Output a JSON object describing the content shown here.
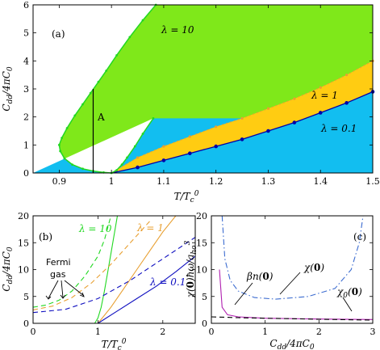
{
  "colors": {
    "green": "#7FE81A",
    "orange": "#FFCC12",
    "cyan": "#12BEF0",
    "blue_line": "#0000A8",
    "green_line": "#21D821",
    "orange_line": "#E8A032",
    "magenta": "#B020B0",
    "sky": "#3C6CD0"
  },
  "chart_data": [
    {
      "type": "area",
      "panel_label": "(a)",
      "xlabel": "T/T_c^0",
      "ylabel": "C_dd/4πC_0",
      "xlim": [
        0.85,
        1.5
      ],
      "ylim": [
        0,
        6
      ],
      "x_ticks": [
        "0.9",
        "1",
        "1.1",
        "1.2",
        "1.3",
        "1.4",
        "1.5"
      ],
      "y_ticks": [
        "0",
        "1",
        "2",
        "3",
        "4",
        "5",
        "6"
      ],
      "region_labels": [
        "λ = 10",
        "λ = 1",
        "λ = 0.1"
      ],
      "annotation": "A",
      "series": [
        {
          "name": "λ = 10",
          "x": [
            1.085,
            1.06,
            1.035,
            1.01,
            0.99,
            0.975,
            0.96,
            0.945,
            0.93,
            0.915,
            0.905,
            0.9,
            0.902,
            0.91,
            0.925,
            0.945,
            0.965,
            0.985,
            1.0,
            1.01,
            1.02,
            1.03,
            1.045,
            1.06,
            1.08
          ],
          "y": [
            6.0,
            5.45,
            4.85,
            4.2,
            3.65,
            3.25,
            2.85,
            2.45,
            2.05,
            1.6,
            1.25,
            1.0,
            0.78,
            0.52,
            0.3,
            0.15,
            0.07,
            0.02,
            0.0,
            0.1,
            0.3,
            0.55,
            0.95,
            1.4,
            1.95
          ]
        },
        {
          "name": "λ = 1",
          "x": [
            1.0,
            1.05,
            1.1,
            1.15,
            1.2,
            1.25,
            1.3,
            1.35,
            1.4,
            1.45,
            1.5
          ],
          "y": [
            0.0,
            0.55,
            0.95,
            1.3,
            1.65,
            1.95,
            2.3,
            2.65,
            3.05,
            3.5,
            4.0
          ]
        },
        {
          "name": "λ = 0.1",
          "x": [
            1.0,
            1.05,
            1.1,
            1.15,
            1.2,
            1.25,
            1.3,
            1.35,
            1.4,
            1.45,
            1.5
          ],
          "y": [
            0.0,
            0.2,
            0.45,
            0.7,
            0.95,
            1.2,
            1.5,
            1.8,
            2.15,
            2.5,
            2.9
          ]
        }
      ],
      "vertical_line": {
        "x": 0.965,
        "y": [
          0,
          3.0
        ]
      }
    },
    {
      "type": "line",
      "panel_label": "(b)",
      "xlabel": "T/T_c^0",
      "ylabel": "C_dd/4πC_0",
      "xlim": [
        0,
        2.5
      ],
      "ylim": [
        0,
        20
      ],
      "x_ticks": [
        "0",
        "1",
        "2"
      ],
      "y_ticks": [
        "0",
        "5",
        "10",
        "15",
        "20"
      ],
      "legend_labels": [
        "λ = 10",
        "λ = 1",
        "λ = 0.1"
      ],
      "annotation": "Fermi gas",
      "series": [
        {
          "name": "λ = 10",
          "style": "solid",
          "x": [
            0.95,
            1.0,
            1.05,
            1.1,
            1.15,
            1.2,
            1.25,
            1.3
          ],
          "y": [
            0,
            1.0,
            3.0,
            6.0,
            9.5,
            13.0,
            16.5,
            20.0
          ]
        },
        {
          "name": "λ = 10",
          "style": "dashed",
          "x": [
            0,
            0.2,
            0.4,
            0.6,
            0.8,
            1.0,
            1.1,
            1.2
          ],
          "y": [
            3.0,
            3.4,
            4.3,
            6.0,
            8.8,
            12.5,
            15.5,
            20.0
          ]
        },
        {
          "name": "λ = 1",
          "style": "solid",
          "x": [
            1.0,
            1.2,
            1.4,
            1.6,
            1.8,
            2.0,
            2.2
          ],
          "y": [
            0.0,
            3.0,
            6.5,
            10.0,
            13.5,
            17.0,
            20.0
          ]
        },
        {
          "name": "λ = 1",
          "style": "dashed",
          "x": [
            0,
            0.3,
            0.6,
            0.9,
            1.2,
            1.5,
            1.8
          ],
          "y": [
            2.5,
            3.2,
            4.8,
            7.5,
            11.0,
            15.0,
            19.0
          ]
        },
        {
          "name": "λ = 0.1",
          "style": "solid",
          "x": [
            1.0,
            1.3,
            1.6,
            1.9,
            2.2,
            2.5
          ],
          "y": [
            0.0,
            2.3,
            4.6,
            6.9,
            9.6,
            12.5
          ]
        },
        {
          "name": "λ = 0.1",
          "style": "dashed",
          "x": [
            0,
            0.5,
            1.0,
            1.5,
            2.0,
            2.5
          ],
          "y": [
            2.0,
            2.6,
            4.6,
            8.0,
            12.0,
            16.0
          ]
        }
      ]
    },
    {
      "type": "line",
      "panel_label": "(c)",
      "xlabel": "C_dd/4πC_0",
      "ylabel": "χ(0)ħω/a_ho^3",
      "xlim": [
        0,
        3
      ],
      "ylim": [
        0,
        20
      ],
      "x_ticks": [
        "0",
        "1",
        "2",
        "3"
      ],
      "y_ticks": [
        "0",
        "5",
        "10",
        "15",
        "20"
      ],
      "series": [
        {
          "name": "χ(0)",
          "style": "dashdot",
          "x": [
            0.2,
            0.25,
            0.35,
            0.5,
            0.8,
            1.2,
            1.8,
            2.3,
            2.6,
            2.75,
            2.82
          ],
          "y": [
            20.0,
            12.0,
            8.0,
            6.0,
            4.8,
            4.5,
            5.0,
            6.5,
            10.0,
            15.0,
            20.0
          ]
        },
        {
          "name": "βn(0)",
          "style": "solid",
          "x": [
            0.15,
            0.2,
            0.3,
            0.5,
            1.0,
            2.0,
            3.0
          ],
          "y": [
            10.0,
            3.0,
            1.6,
            1.2,
            0.95,
            0.8,
            0.7
          ]
        },
        {
          "name": "χ0(0)",
          "style": "dashed",
          "x": [
            0,
            0.5,
            1.0,
            1.5,
            2.0,
            2.5,
            3.0
          ],
          "y": [
            1.2,
            1.05,
            0.95,
            0.85,
            0.75,
            0.68,
            0.6
          ]
        }
      ]
    }
  ]
}
